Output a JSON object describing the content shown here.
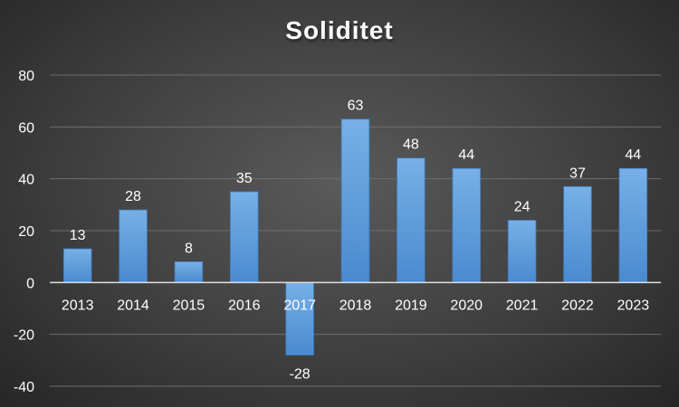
{
  "chart_data": {
    "type": "bar",
    "title": "Soliditet",
    "categories": [
      "2013",
      "2014",
      "2015",
      "2016",
      "2017",
      "2018",
      "2019",
      "2020",
      "2021",
      "2022",
      "2023"
    ],
    "values": [
      13,
      28,
      8,
      35,
      -28,
      63,
      48,
      44,
      24,
      37,
      44
    ],
    "ylim": [
      -40,
      80
    ],
    "yticks": [
      "-40",
      "-20",
      "0",
      "20",
      "40",
      "60",
      "80"
    ],
    "grid": true,
    "legend": "none",
    "bar_color": "#5b9bd5",
    "gridline_color": "#6e6e6e"
  }
}
